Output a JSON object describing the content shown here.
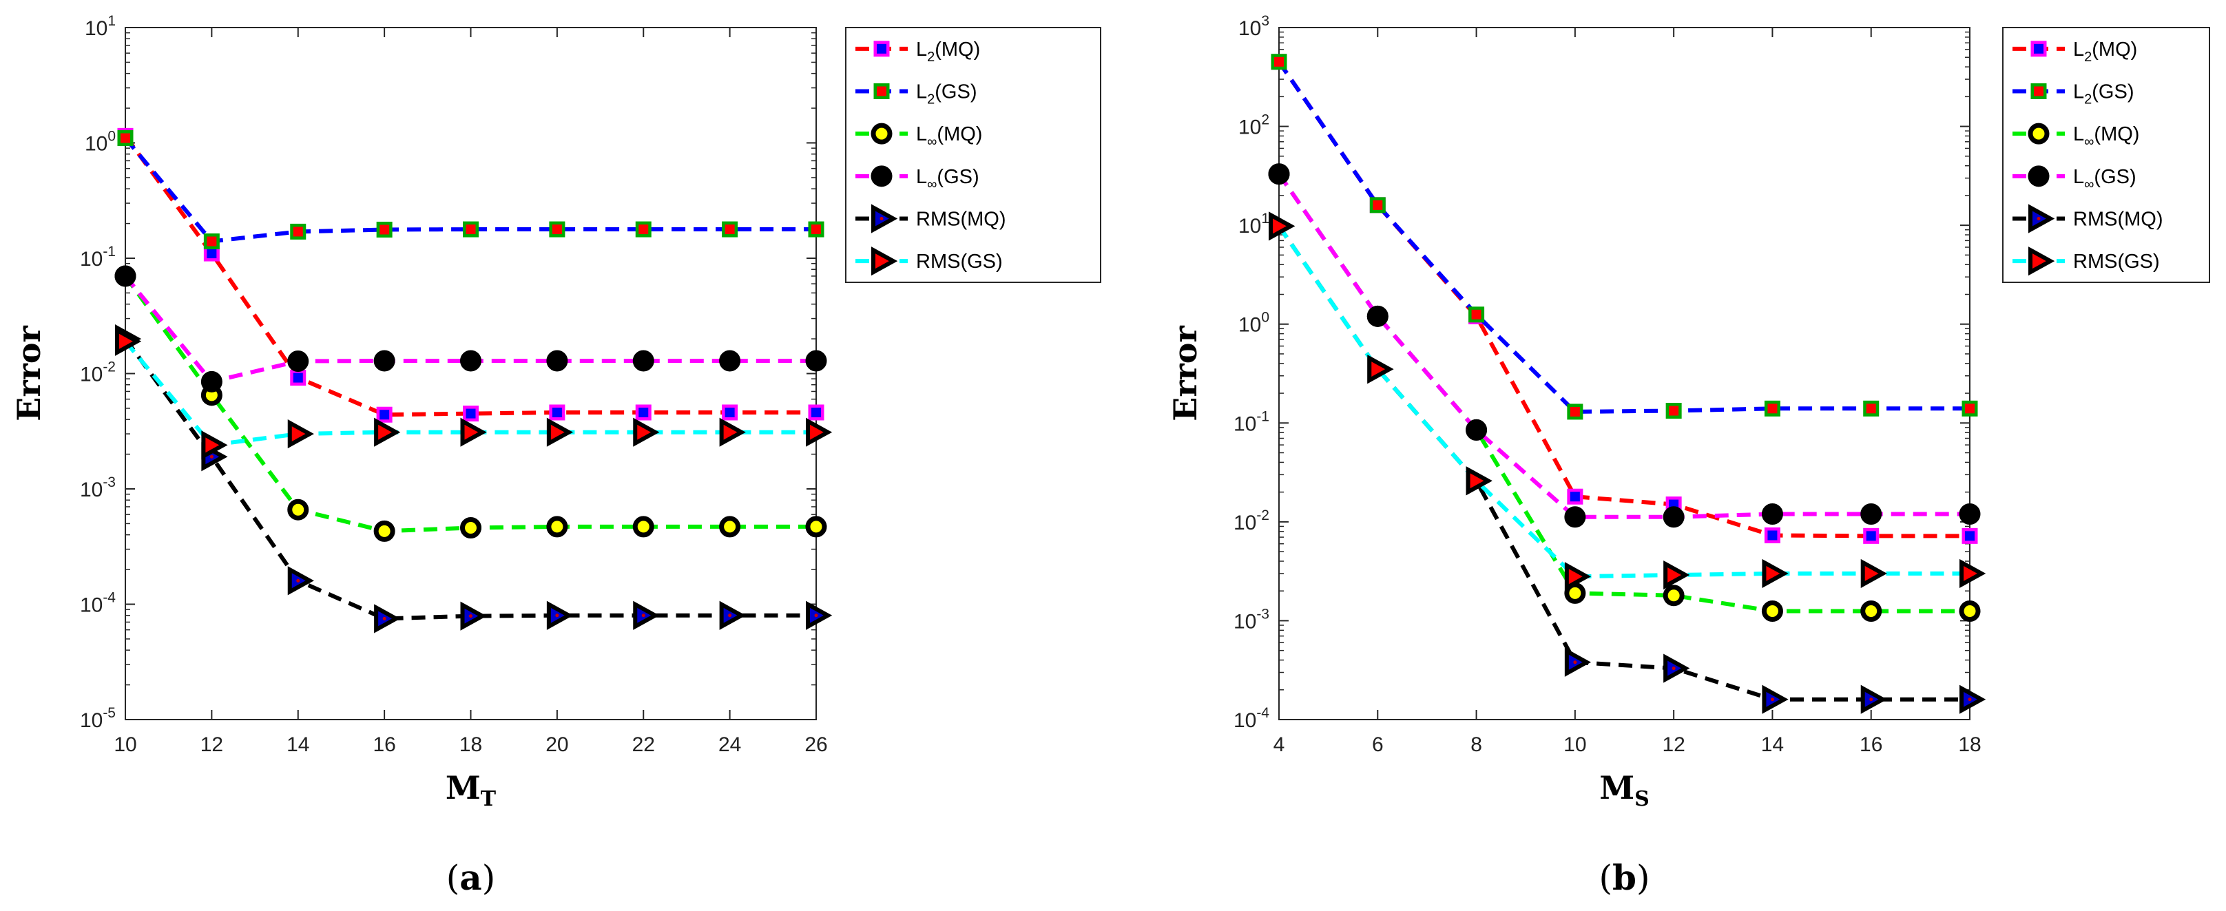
{
  "chart_data": [
    {
      "type": "line",
      "panel_label": "a",
      "ylabel": "Error",
      "xlabel": "M",
      "xlabel_sub": "T",
      "xlim": [
        10,
        26
      ],
      "xticks": [
        10,
        12,
        14,
        16,
        18,
        20,
        22,
        24,
        26
      ],
      "yscale": "log",
      "ylim": [
        1e-05,
        10
      ],
      "yticks": [
        {
          "value": 1e-05,
          "base": "10",
          "exp": "-5"
        },
        {
          "value": 0.0001,
          "base": "10",
          "exp": "-4"
        },
        {
          "value": 0.001,
          "base": "10",
          "exp": "-3"
        },
        {
          "value": 0.01,
          "base": "10",
          "exp": "-2"
        },
        {
          "value": 0.1,
          "base": "10",
          "exp": "-1"
        },
        {
          "value": 1,
          "base": "10",
          "exp": "0"
        },
        {
          "value": 10,
          "base": "10",
          "exp": "1"
        }
      ],
      "legend_position": "outside-top-right",
      "series": [
        {
          "name": "L2(MQ)",
          "label_main": "L",
          "label_sub": "2",
          "label_tail": "(MQ)",
          "line_color": "#ff0000",
          "marker": "square",
          "marker_face": "#0000ff",
          "marker_edge": "#ff00ff",
          "x": [
            10,
            12,
            14,
            16,
            18,
            20,
            22,
            24,
            26
          ],
          "values": [
            1.15,
            0.11,
            0.0092,
            0.0044,
            0.0045,
            0.0046,
            0.0046,
            0.0046,
            0.0046
          ]
        },
        {
          "name": "L2(GS)",
          "label_main": "L",
          "label_sub": "2",
          "label_tail": "(GS)",
          "line_color": "#0000ff",
          "marker": "square",
          "marker_face": "#ff0000",
          "marker_edge": "#00aa00",
          "x": [
            10,
            12,
            14,
            16,
            18,
            20,
            22,
            24,
            26
          ],
          "values": [
            1.1,
            0.14,
            0.17,
            0.177,
            0.178,
            0.178,
            0.178,
            0.178,
            0.178
          ]
        },
        {
          "name": "L∞(MQ)",
          "label_main": "L",
          "label_sub": "∞",
          "label_tail": "(MQ)",
          "line_color": "#00ee00",
          "marker": "circle",
          "marker_face": "#ffff00",
          "marker_edge": "#000000",
          "x": [
            10,
            12,
            14,
            16,
            18,
            20,
            22,
            24,
            26
          ],
          "values": [
            0.07,
            0.0065,
            0.00066,
            0.00043,
            0.00046,
            0.00047,
            0.00047,
            0.00047,
            0.00047
          ]
        },
        {
          "name": "L∞(GS)",
          "label_main": "L",
          "label_sub": "∞",
          "label_tail": "(GS)",
          "line_color": "#ff00ff",
          "marker": "circle",
          "marker_face": "#000000",
          "marker_edge": "#000000",
          "x": [
            10,
            12,
            14,
            16,
            18,
            20,
            22,
            24,
            26
          ],
          "values": [
            0.07,
            0.0085,
            0.0128,
            0.0129,
            0.0129,
            0.0129,
            0.0129,
            0.0129,
            0.0129
          ]
        },
        {
          "name": "RMS(MQ)",
          "label_main": "RMS(MQ)",
          "label_sub": "",
          "label_tail": "",
          "line_color": "#000000",
          "marker": "triangle",
          "marker_face": "#0000cc",
          "marker_edge": "#000000",
          "x": [
            10,
            12,
            14,
            16,
            18,
            20,
            22,
            24,
            26
          ],
          "values": [
            0.02,
            0.0019,
            0.00016,
            7.5e-05,
            7.9e-05,
            8e-05,
            8e-05,
            8e-05,
            8e-05
          ]
        },
        {
          "name": "RMS(GS)",
          "label_main": "RMS(GS)",
          "label_sub": "",
          "label_tail": "",
          "line_color": "#00ffff",
          "marker": "triangle",
          "marker_face": "#ff0000",
          "marker_edge": "#000000",
          "x": [
            10,
            12,
            14,
            16,
            18,
            20,
            22,
            24,
            26
          ],
          "values": [
            0.019,
            0.0024,
            0.003,
            0.0031,
            0.0031,
            0.0031,
            0.0031,
            0.0031,
            0.0031
          ]
        }
      ]
    },
    {
      "type": "line",
      "panel_label": "b",
      "ylabel": "Error",
      "xlabel": "M",
      "xlabel_sub": "S",
      "xlim": [
        4,
        18
      ],
      "xticks": [
        4,
        6,
        8,
        10,
        12,
        14,
        16,
        18
      ],
      "yscale": "log",
      "ylim": [
        0.0001,
        1000
      ],
      "yticks": [
        {
          "value": 0.0001,
          "base": "10",
          "exp": "-4"
        },
        {
          "value": 0.001,
          "base": "10",
          "exp": "-3"
        },
        {
          "value": 0.01,
          "base": "10",
          "exp": "-2"
        },
        {
          "value": 0.1,
          "base": "10",
          "exp": "-1"
        },
        {
          "value": 1,
          "base": "10",
          "exp": "0"
        },
        {
          "value": 10,
          "base": "10",
          "exp": "1"
        },
        {
          "value": 100,
          "base": "10",
          "exp": "2"
        },
        {
          "value": 1000,
          "base": "10",
          "exp": "3"
        }
      ],
      "legend_position": "outside-top-right",
      "series": [
        {
          "name": "L2(MQ)",
          "label_main": "L",
          "label_sub": "2",
          "label_tail": "(MQ)",
          "line_color": "#ff0000",
          "marker": "square",
          "marker_face": "#0000ff",
          "marker_edge": "#ff00ff",
          "x": [
            4,
            6,
            8,
            10,
            12,
            14,
            16,
            18
          ],
          "values": [
            450,
            16,
            1.2,
            0.018,
            0.015,
            0.0073,
            0.0072,
            0.0072
          ]
        },
        {
          "name": "L2(GS)",
          "label_main": "L",
          "label_sub": "2",
          "label_tail": "(GS)",
          "line_color": "#0000ff",
          "marker": "square",
          "marker_face": "#ff0000",
          "marker_edge": "#00aa00",
          "x": [
            4,
            6,
            8,
            10,
            12,
            14,
            16,
            18
          ],
          "values": [
            450,
            16,
            1.25,
            0.13,
            0.133,
            0.14,
            0.14,
            0.14
          ]
        },
        {
          "name": "L∞(MQ)",
          "label_main": "L",
          "label_sub": "∞",
          "label_tail": "(MQ)",
          "line_color": "#00ee00",
          "marker": "circle",
          "marker_face": "#ffff00",
          "marker_edge": "#000000",
          "x": [
            4,
            6,
            8,
            10,
            12,
            14,
            16,
            18
          ],
          "values": [
            33,
            1.2,
            0.085,
            0.0019,
            0.0018,
            0.00125,
            0.00125,
            0.00125
          ]
        },
        {
          "name": "L∞(GS)",
          "label_main": "L",
          "label_sub": "∞",
          "label_tail": "(GS)",
          "line_color": "#ff00ff",
          "marker": "circle",
          "marker_face": "#000000",
          "marker_edge": "#000000",
          "x": [
            4,
            6,
            8,
            10,
            12,
            14,
            16,
            18
          ],
          "values": [
            33,
            1.2,
            0.085,
            0.0112,
            0.0112,
            0.012,
            0.012,
            0.012
          ]
        },
        {
          "name": "RMS(MQ)",
          "label_main": "RMS(MQ)",
          "label_sub": "",
          "label_tail": "",
          "line_color": "#000000",
          "marker": "triangle",
          "marker_face": "#0000cc",
          "marker_edge": "#000000",
          "x": [
            4,
            6,
            8,
            10,
            12,
            14,
            16,
            18
          ],
          "values": [
            9.8,
            0.35,
            0.026,
            0.00038,
            0.00033,
            0.00016,
            0.00016,
            0.00016
          ]
        },
        {
          "name": "RMS(GS)",
          "label_main": "RMS(GS)",
          "label_sub": "",
          "label_tail": "",
          "line_color": "#00ffff",
          "marker": "triangle",
          "marker_face": "#ff0000",
          "marker_edge": "#000000",
          "x": [
            4,
            6,
            8,
            10,
            12,
            14,
            16,
            18
          ],
          "values": [
            9.8,
            0.35,
            0.026,
            0.0028,
            0.0029,
            0.003,
            0.003,
            0.003
          ]
        }
      ]
    }
  ]
}
